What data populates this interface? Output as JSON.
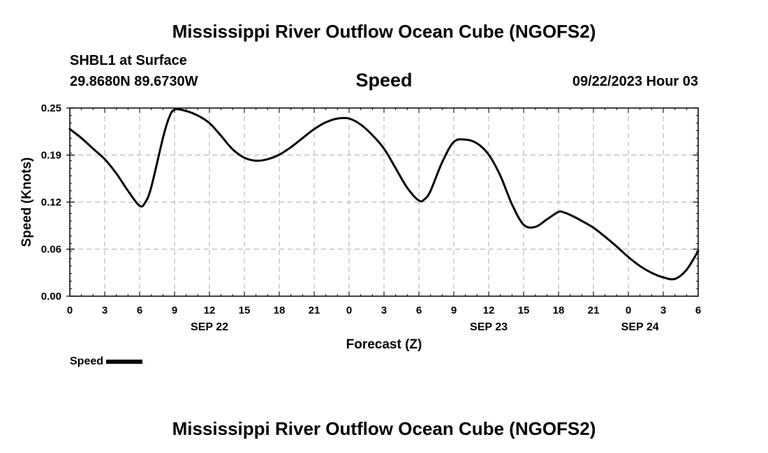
{
  "header": {
    "title": "Mississippi River Outflow Ocean Cube (NGOFS2)",
    "station": "SHBL1 at Surface",
    "coords": "29.8680N  89.6730W",
    "variable": "Speed",
    "datetime": "09/22/2023 Hour 03"
  },
  "footer": {
    "title": "Mississippi River Outflow Ocean Cube (NGOFS2)"
  },
  "chart_data": {
    "type": "line",
    "xlabel": "Forecast (Z)",
    "ylabel": "Speed (Knots)",
    "xlim": [
      0,
      54
    ],
    "ylim": [
      0,
      0.25
    ],
    "yticks": [
      "0.00",
      "0.06",
      "0.12",
      "0.19",
      "0.25"
    ],
    "yticks_values": [
      0,
      0.0625,
      0.125,
      0.1875,
      0.25
    ],
    "xticks": [
      "0",
      "3",
      "6",
      "9",
      "12",
      "15",
      "18",
      "21",
      "0",
      "3",
      "6",
      "9",
      "12",
      "15",
      "18",
      "21",
      "0",
      "3",
      "6"
    ],
    "day_labels": [
      {
        "label": "SEP 22",
        "x": 12
      },
      {
        "label": "SEP 23",
        "x": 36
      },
      {
        "label": "SEP 24",
        "x": 49
      }
    ],
    "grid": true,
    "legend": "bottom-left",
    "series": [
      {
        "name": "Speed",
        "color": "#000000",
        "x": [
          0,
          1,
          2,
          3,
          4,
          5,
          6,
          6.5,
          7,
          8,
          8.5,
          9,
          10,
          11,
          12,
          13,
          14,
          15,
          16,
          17,
          18,
          19,
          20,
          21,
          22,
          23,
          24,
          25,
          26,
          27,
          28,
          29,
          30,
          30.5,
          31,
          32,
          33,
          34,
          35,
          36,
          37,
          38,
          39,
          40,
          41,
          42,
          42.5,
          43,
          44,
          45,
          46,
          47,
          48,
          49,
          50,
          51,
          52,
          53,
          54
        ],
        "y": [
          0.222,
          0.21,
          0.196,
          0.182,
          0.163,
          0.14,
          0.12,
          0.125,
          0.145,
          0.21,
          0.236,
          0.248,
          0.246,
          0.24,
          0.23,
          0.213,
          0.195,
          0.184,
          0.18,
          0.182,
          0.188,
          0.198,
          0.21,
          0.222,
          0.231,
          0.236,
          0.236,
          0.228,
          0.214,
          0.196,
          0.17,
          0.144,
          0.127,
          0.129,
          0.14,
          0.178,
          0.205,
          0.208,
          0.203,
          0.188,
          0.16,
          0.122,
          0.095,
          0.092,
          0.102,
          0.112,
          0.111,
          0.108,
          0.1,
          0.091,
          0.079,
          0.066,
          0.052,
          0.04,
          0.031,
          0.025,
          0.023,
          0.035,
          0.06
        ]
      }
    ]
  }
}
